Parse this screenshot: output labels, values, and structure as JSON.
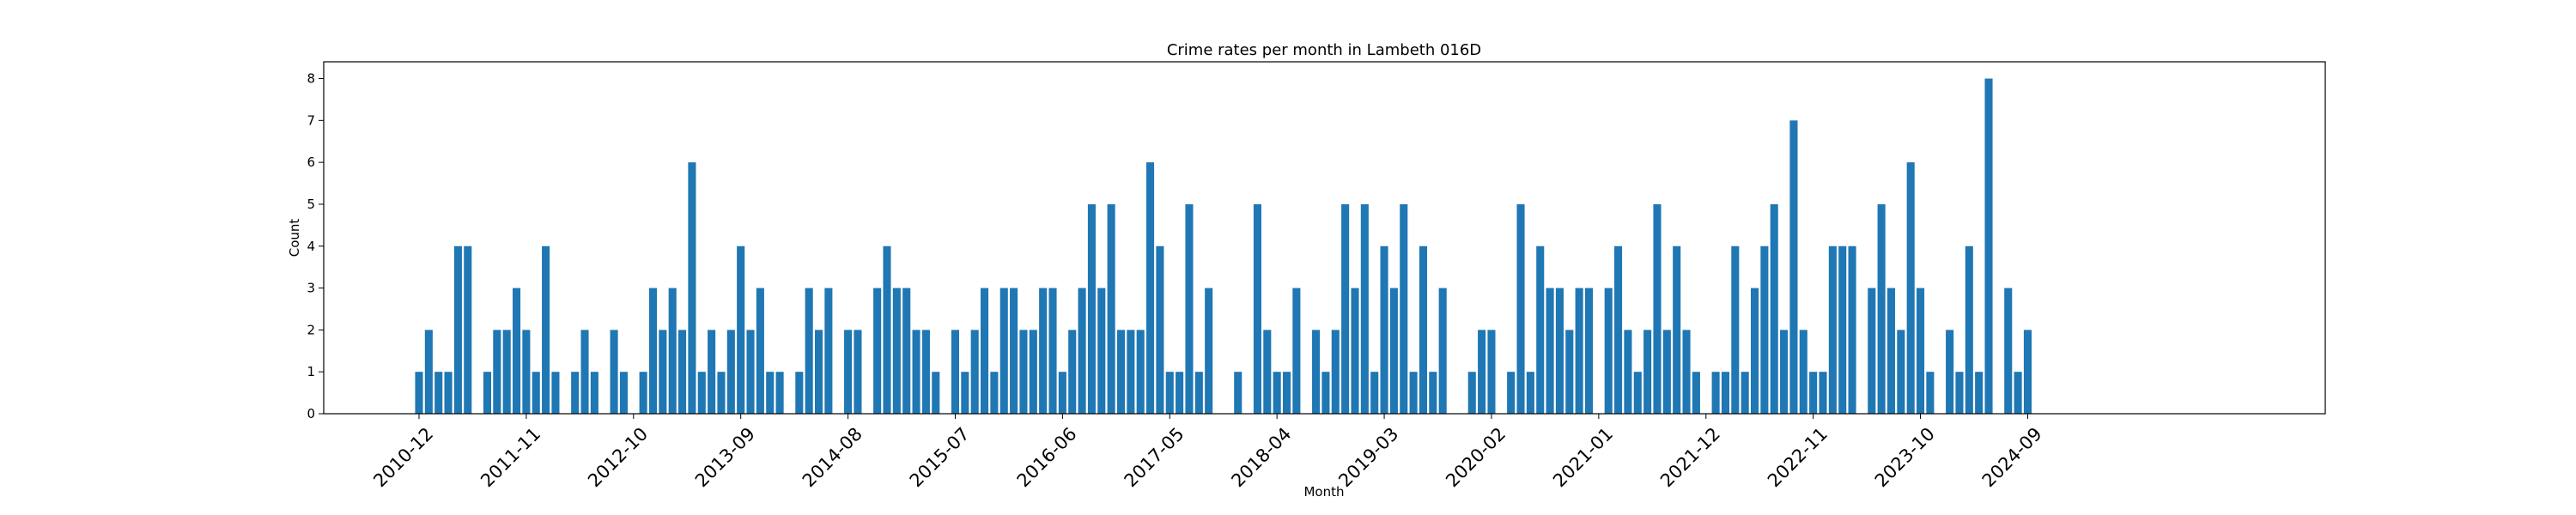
{
  "chart_data": {
    "type": "bar",
    "title": "Crime rates per month in Lambeth 016D",
    "xlabel": "Month",
    "ylabel": "Count",
    "ylim": [
      0,
      8.4
    ],
    "yticks": [
      "0",
      "1",
      "2",
      "3",
      "4",
      "5",
      "6",
      "7",
      "8"
    ],
    "grid": false,
    "bar_color": "#1f77b4",
    "xtick_labels": [
      "2010-12",
      "2011-11",
      "2012-10",
      "2013-09",
      "2014-08",
      "2015-07",
      "2016-06",
      "2017-05",
      "2018-04",
      "2019-03",
      "2020-02",
      "2021-01",
      "2021-12",
      "2022-11",
      "2023-10",
      "2024-09"
    ],
    "categories": [
      "2010-12",
      "2011-01",
      "2011-02",
      "2011-03",
      "2011-04",
      "2011-05",
      "2011-07",
      "2011-08",
      "2011-09",
      "2011-10",
      "2011-11",
      "2011-12",
      "2012-01",
      "2012-02",
      "2012-04",
      "2012-05",
      "2012-06",
      "2012-08",
      "2012-09",
      "2012-11",
      "2012-12",
      "2013-01",
      "2013-02",
      "2013-03",
      "2013-04",
      "2013-05",
      "2013-06",
      "2013-07",
      "2013-08",
      "2013-09",
      "2013-10",
      "2013-11",
      "2013-12",
      "2014-01",
      "2014-03",
      "2014-04",
      "2014-05",
      "2014-06",
      "2014-08",
      "2014-09",
      "2014-11",
      "2014-12",
      "2015-01",
      "2015-02",
      "2015-03",
      "2015-04",
      "2015-05",
      "2015-07",
      "2015-08",
      "2015-09",
      "2015-10",
      "2015-11",
      "2015-12",
      "2016-01",
      "2016-02",
      "2016-03",
      "2016-04",
      "2016-05",
      "2016-06",
      "2016-07",
      "2016-08",
      "2016-09",
      "2016-10",
      "2016-11",
      "2016-12",
      "2017-01",
      "2017-02",
      "2017-03",
      "2017-04",
      "2017-05",
      "2017-06",
      "2017-07",
      "2017-08",
      "2017-09",
      "2017-12",
      "2018-02",
      "2018-03",
      "2018-04",
      "2018-05",
      "2018-06",
      "2018-08",
      "2018-09",
      "2018-10",
      "2018-11",
      "2018-12",
      "2019-01",
      "2019-02",
      "2019-03",
      "2019-04",
      "2019-05",
      "2019-06",
      "2019-07",
      "2019-08",
      "2019-09",
      "2019-12",
      "2020-01",
      "2020-02",
      "2020-04",
      "2020-05",
      "2020-06",
      "2020-07",
      "2020-08",
      "2020-09",
      "2020-10",
      "2020-11",
      "2020-12",
      "2021-02",
      "2021-03",
      "2021-04",
      "2021-05",
      "2021-06",
      "2021-07",
      "2021-08",
      "2021-09",
      "2021-10",
      "2021-11",
      "2022-01",
      "2022-02",
      "2022-03",
      "2022-04",
      "2022-05",
      "2022-06",
      "2022-07",
      "2022-08",
      "2022-09",
      "2022-10",
      "2022-11",
      "2022-12",
      "2023-01",
      "2023-02",
      "2023-03",
      "2023-05",
      "2023-06",
      "2023-07",
      "2023-08",
      "2023-09",
      "2023-10",
      "2023-11",
      "2024-01",
      "2024-02",
      "2024-03",
      "2024-04",
      "2024-05",
      "2024-07",
      "2024-08",
      "2024-09"
    ],
    "values": [
      1,
      2,
      1,
      1,
      4,
      4,
      1,
      2,
      2,
      3,
      2,
      1,
      4,
      1,
      1,
      2,
      1,
      2,
      1,
      1,
      3,
      2,
      3,
      2,
      6,
      1,
      2,
      1,
      2,
      4,
      2,
      3,
      1,
      1,
      1,
      3,
      2,
      3,
      2,
      2,
      3,
      4,
      3,
      3,
      2,
      2,
      1,
      2,
      1,
      2,
      3,
      1,
      3,
      3,
      2,
      2,
      3,
      3,
      1,
      2,
      3,
      5,
      3,
      5,
      2,
      2,
      2,
      6,
      4,
      1,
      1,
      5,
      1,
      3,
      1,
      5,
      2,
      1,
      1,
      3,
      2,
      1,
      2,
      5,
      3,
      5,
      1,
      4,
      3,
      5,
      1,
      4,
      1,
      3,
      1,
      2,
      2,
      1,
      5,
      1,
      4,
      3,
      3,
      2,
      3,
      3,
      3,
      4,
      2,
      1,
      2,
      5,
      2,
      4,
      2,
      1,
      1,
      1,
      4,
      1,
      3,
      4,
      5,
      2,
      7,
      2,
      1,
      1,
      4,
      4,
      4,
      3,
      5,
      3,
      2,
      6,
      3,
      1,
      2,
      1,
      4,
      1,
      8,
      3,
      1,
      2
    ],
    "gaps_after_index": [
      5,
      13,
      16,
      18,
      33,
      37,
      39,
      46,
      73,
      74,
      79,
      93,
      96,
      105,
      115,
      130,
      137,
      142
    ],
    "gap_after_2017_09": 2,
    "gap_after_2017_12": 1,
    "gap_after_2019_09": 2
  }
}
